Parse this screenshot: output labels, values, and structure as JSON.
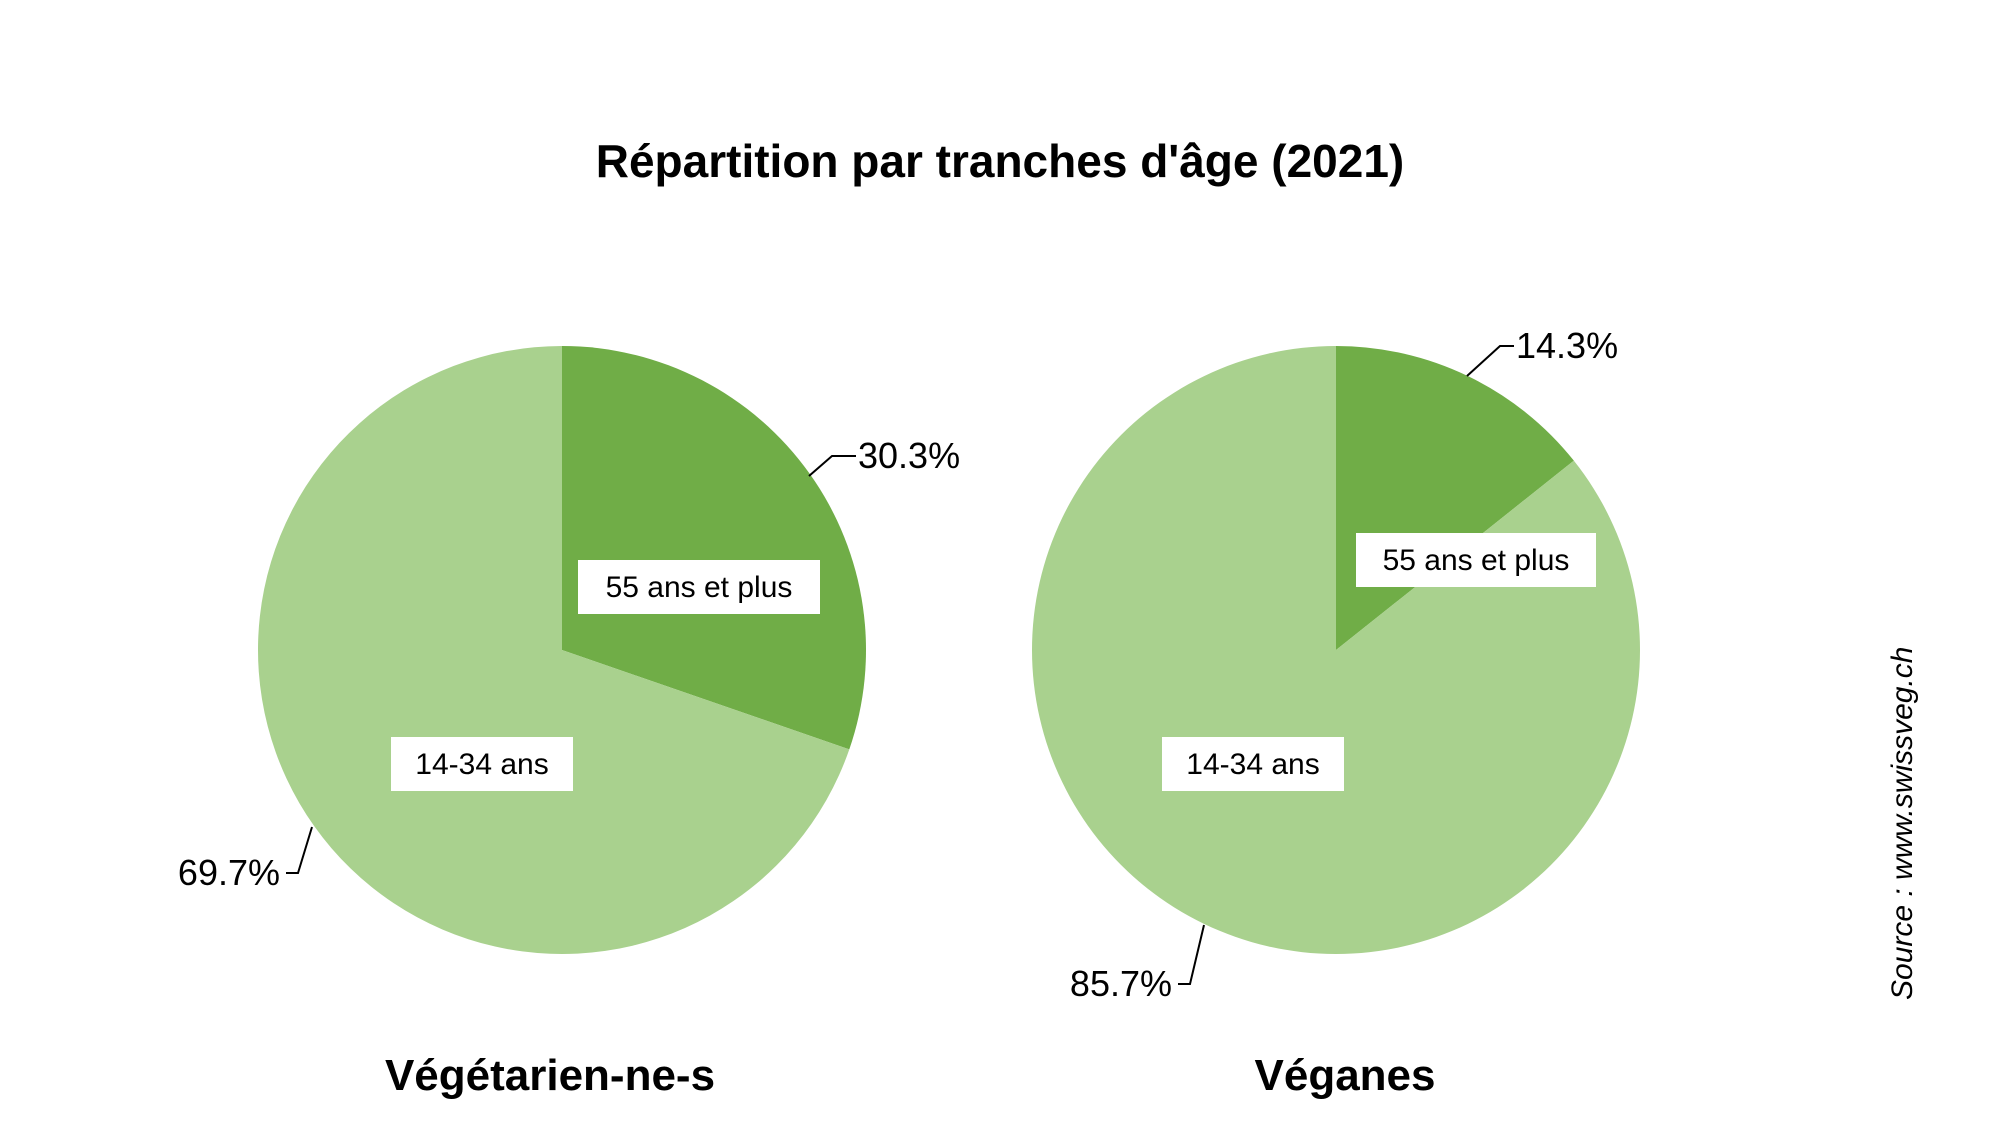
{
  "chart_data": {
    "type": "pie",
    "title": "Répartition par tranches d'âge (2021)",
    "source": "Source : www.swissveg.ch",
    "colors": {
      "55 ans et plus": "#70ad47",
      "14-34 ans": "#a9d18e"
    },
    "charts": [
      {
        "name": "Végétarien-ne-s",
        "slices": [
          {
            "label": "55 ans et plus",
            "value": 30.3,
            "value_label": "30.3%"
          },
          {
            "label": "14-34 ans",
            "value": 69.7,
            "value_label": "69.7%"
          }
        ]
      },
      {
        "name": "Véganes",
        "slices": [
          {
            "label": "55 ans et plus",
            "value": 14.3,
            "value_label": "14.3%"
          },
          {
            "label": "14-34 ans",
            "value": 85.7,
            "value_label": "85.7%"
          }
        ]
      }
    ]
  }
}
